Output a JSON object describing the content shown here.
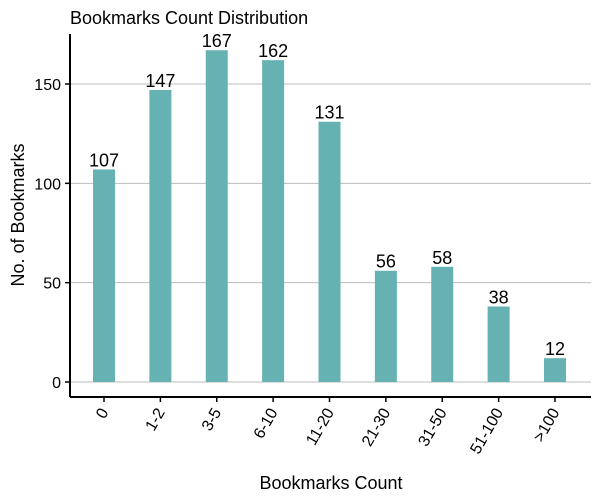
{
  "chart_data": {
    "type": "bar",
    "title": "Bookmarks Count Distribution",
    "xlabel": "Bookmarks Count",
    "ylabel": "No. of Bookmarks",
    "categories": [
      "0",
      "1-2",
      "3-5",
      "6-10",
      "11-20",
      "21-30",
      "31-50",
      "51-100",
      ">100"
    ],
    "values": [
      107,
      147,
      167,
      162,
      131,
      56,
      58,
      38,
      12
    ],
    "data_labels": [
      "107",
      "147",
      "167",
      "162",
      "131",
      "56",
      "58",
      "38",
      "12"
    ],
    "yticks": [
      0,
      50,
      100,
      150
    ],
    "ytick_labels": [
      "0",
      "50",
      "100",
      "150"
    ],
    "ylim": [
      -7,
      175
    ],
    "grid": "horizontal-major",
    "legend": "none",
    "bar_color": "#66b2b2"
  }
}
